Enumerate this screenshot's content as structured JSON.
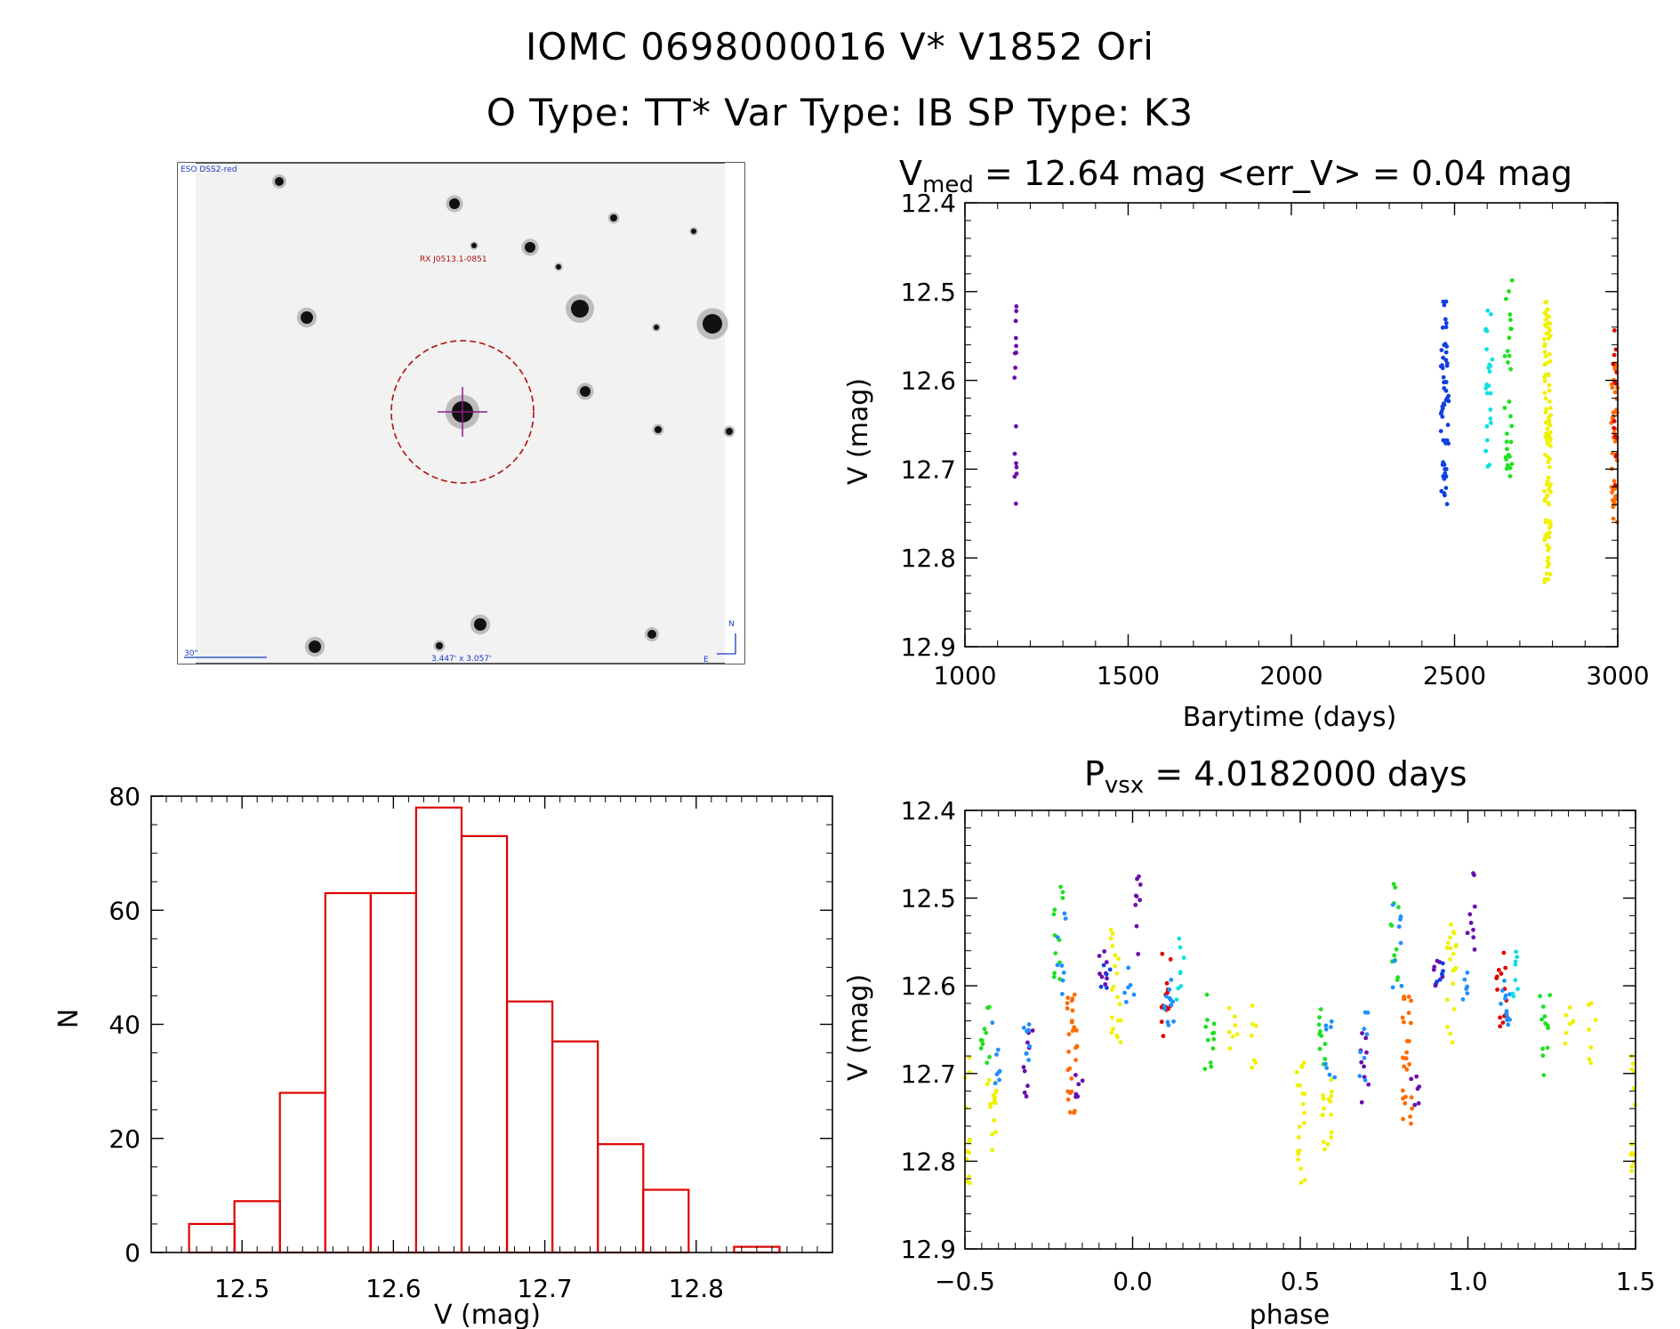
{
  "header": {
    "title_line1": "IOMC 0698000016    V* V1852 Ori",
    "title_line2": "O Type: TT*  Var Type: IB  SP Type: K3"
  },
  "finder": {
    "label_survey": "ESO DSS2-red",
    "label_target": "RX J0513.1-0851",
    "label_scale": "30\"",
    "label_size": "3.447' x 3.057'",
    "label_north": "N",
    "label_east": "E"
  },
  "colors": {
    "purple": "#6a0dad",
    "blue": "#1040e0",
    "lightblue": "#1e90ff",
    "cyan": "#10e0e0",
    "green": "#20e020",
    "yellow": "#f0f000",
    "orange": "#ff6a00",
    "red": "#e00000",
    "hist": "#e00000"
  },
  "chart_data": [
    {
      "type": "scatter",
      "title": "V_med = 12.64 mag <err_V> = 0.04 mag",
      "title_main": "V",
      "title_sub": "med",
      "title_rest": " = 12.64 mag <err_V> = 0.04 mag",
      "xlabel": "Barytime (days)",
      "ylabel": "V (mag)",
      "xlim": [
        1000,
        3000
      ],
      "ylim": [
        12.4,
        12.9
      ],
      "y_inverted": true,
      "xticks": [
        1000,
        1500,
        2000,
        2500,
        3000
      ],
      "yticks": [
        12.4,
        12.5,
        12.6,
        12.7,
        12.8,
        12.9
      ],
      "series": [
        {
          "color": "purple",
          "x_center": 1155,
          "x_spread": 4,
          "y_min": 12.47,
          "y_max": 12.74,
          "n": 16
        },
        {
          "color": "blue",
          "x_center": 2470,
          "x_spread": 12,
          "y_min": 12.51,
          "y_max": 12.74,
          "n": 60
        },
        {
          "color": "cyan",
          "x_center": 2605,
          "x_spread": 12,
          "y_min": 12.52,
          "y_max": 12.7,
          "n": 25
        },
        {
          "color": "green",
          "x_center": 2665,
          "x_spread": 12,
          "y_min": 12.48,
          "y_max": 12.71,
          "n": 30
        },
        {
          "color": "yellow",
          "x_center": 2785,
          "x_spread": 10,
          "y_min": 12.51,
          "y_max": 12.83,
          "n": 110
        },
        {
          "color": "orange",
          "x_center": 2990,
          "x_spread": 10,
          "y_min": 12.58,
          "y_max": 12.76,
          "n": 40
        },
        {
          "color": "red",
          "x_center": 2992,
          "x_spread": 6,
          "y_min": 12.52,
          "y_max": 12.72,
          "n": 14
        }
      ]
    },
    {
      "type": "bar",
      "title": "",
      "xlabel": "V (mag)",
      "ylabel": "N",
      "xlim": [
        12.44,
        12.89
      ],
      "ylim": [
        0,
        80
      ],
      "xticks": [
        12.5,
        12.6,
        12.7,
        12.8
      ],
      "yticks": [
        0,
        20,
        40,
        60,
        80
      ],
      "bin_edges": [
        12.465,
        12.495,
        12.525,
        12.555,
        12.585,
        12.615,
        12.645,
        12.675,
        12.705,
        12.735,
        12.765,
        12.795,
        12.825,
        12.855
      ],
      "values": [
        5,
        9,
        28,
        63,
        63,
        78,
        73,
        44,
        37,
        19,
        11,
        0,
        1
      ]
    },
    {
      "type": "scatter",
      "title": "P_vsx = 4.0182000 days",
      "title_main": "P",
      "title_sub": "vsx",
      "title_rest": " = 4.0182000 days",
      "xlabel": "phase",
      "ylabel": "V (mag)",
      "xlim": [
        -0.5,
        1.5
      ],
      "ylim": [
        12.4,
        12.9
      ],
      "y_inverted": true,
      "xticks": [
        -0.5,
        0.0,
        0.5,
        1.0,
        1.5
      ],
      "xtick_labels": [
        "−0.5",
        "0.0",
        "0.5",
        "1.0",
        "1.5"
      ],
      "yticks": [
        12.4,
        12.5,
        12.6,
        12.7,
        12.8,
        12.9
      ],
      "clusters": [
        {
          "color": "purple",
          "phase": 0.01,
          "y_min": 12.47,
          "y_max": 12.57,
          "n": 9
        },
        {
          "color": "lightblue",
          "phase": -0.01,
          "y_min": 12.57,
          "y_max": 12.62,
          "n": 6
        },
        {
          "color": "red",
          "phase": 0.1,
          "y_min": 12.56,
          "y_max": 12.66,
          "n": 14
        },
        {
          "color": "lightblue",
          "phase": 0.11,
          "y_min": 12.59,
          "y_max": 12.65,
          "n": 12
        },
        {
          "color": "cyan",
          "phase": 0.14,
          "y_min": 12.54,
          "y_max": 12.62,
          "n": 8
        },
        {
          "color": "green",
          "phase": 0.23,
          "y_min": 12.61,
          "y_max": 12.71,
          "n": 12
        },
        {
          "color": "yellow",
          "phase": 0.3,
          "y_min": 12.62,
          "y_max": 12.68,
          "n": 7
        },
        {
          "color": "yellow",
          "phase": 0.37,
          "y_min": 12.61,
          "y_max": 12.7,
          "n": 7
        },
        {
          "color": "yellow",
          "phase": 0.5,
          "y_min": 12.68,
          "y_max": 12.83,
          "n": 20
        },
        {
          "color": "green",
          "phase": 0.56,
          "y_min": 12.62,
          "y_max": 12.7,
          "n": 10
        },
        {
          "color": "yellow",
          "phase": 0.58,
          "y_min": 12.7,
          "y_max": 12.79,
          "n": 16
        },
        {
          "color": "lightblue",
          "phase": 0.59,
          "y_min": 12.64,
          "y_max": 12.72,
          "n": 8
        },
        {
          "color": "purple",
          "phase": 0.69,
          "y_min": 12.65,
          "y_max": 12.74,
          "n": 9
        },
        {
          "color": "lightblue",
          "phase": 0.69,
          "y_min": 12.63,
          "y_max": 12.71,
          "n": 8
        },
        {
          "color": "green",
          "phase": 0.78,
          "y_min": 12.48,
          "y_max": 12.6,
          "n": 12
        },
        {
          "color": "lightblue",
          "phase": 0.79,
          "y_min": 12.5,
          "y_max": 12.63,
          "n": 8
        },
        {
          "color": "orange",
          "phase": 0.82,
          "y_min": 12.61,
          "y_max": 12.76,
          "n": 28
        },
        {
          "color": "purple",
          "phase": 0.84,
          "y_min": 12.7,
          "y_max": 12.74,
          "n": 6
        },
        {
          "color": "purple",
          "phase": 0.91,
          "y_min": 12.56,
          "y_max": 12.6,
          "n": 8
        },
        {
          "color": "blue",
          "phase": 0.92,
          "y_min": 12.57,
          "y_max": 12.61,
          "n": 5
        },
        {
          "color": "yellow",
          "phase": 0.95,
          "y_min": 12.53,
          "y_max": 12.67,
          "n": 20
        }
      ]
    }
  ]
}
